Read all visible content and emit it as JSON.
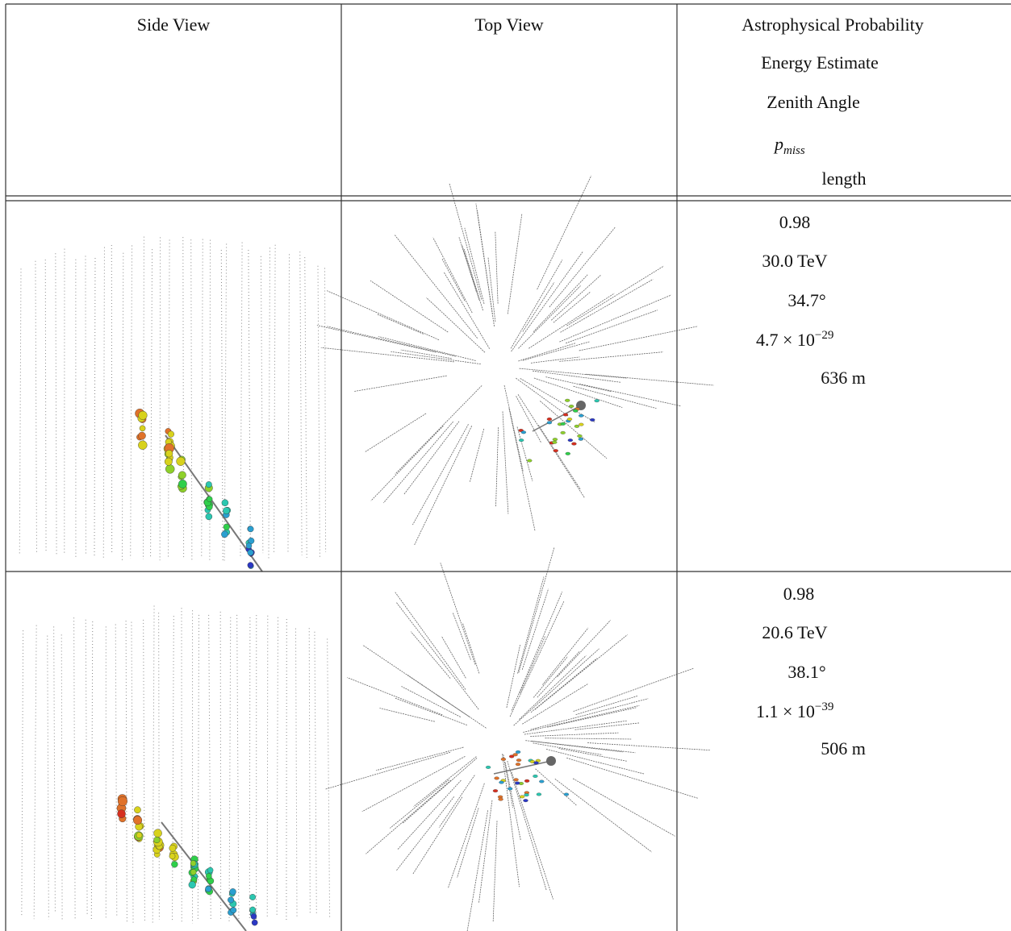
{
  "table": {
    "header": {
      "side": "Side View",
      "top": "Top View",
      "metrics": [
        "Astrophysical Probability",
        "Energy Estimate",
        "Zenith Angle",
        {
          "base": "p",
          "sub": "miss"
        },
        "length"
      ]
    },
    "rows": [
      {
        "probability": "0.98",
        "energy": "30.0 TeV",
        "zenith": "34.7°",
        "pmiss": {
          "mantissa": "4.7 × 10",
          "exponent": "−29"
        },
        "length": "636 m"
      },
      {
        "probability": "0.98",
        "energy": "20.6 TeV",
        "zenith": "38.1°",
        "pmiss": {
          "mantissa": "1.1 × 10",
          "exponent": "−39"
        },
        "length": "506 m"
      }
    ]
  }
}
